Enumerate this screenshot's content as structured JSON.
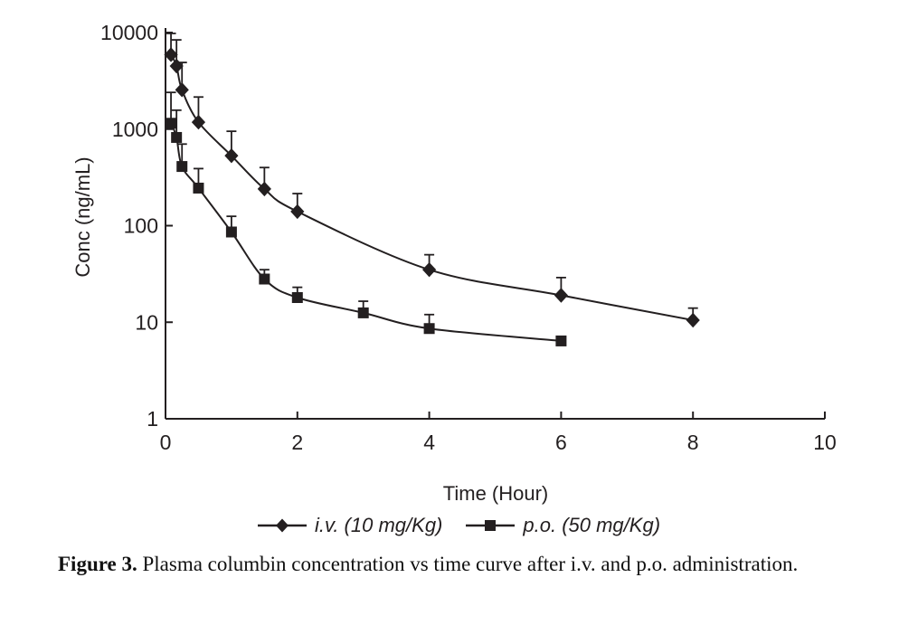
{
  "figure": {
    "background": "#ffffff",
    "ink_color": "#231f20"
  },
  "chart_data": {
    "type": "line",
    "title": "",
    "xlabel": "Time (Hour)",
    "ylabel": "Conc (ng/mL)",
    "grid": false,
    "legend_position": "bottom-center",
    "error_bars": "upward_only",
    "x_axis": {
      "min": 0,
      "max": 10,
      "ticks": [
        {
          "value": 0,
          "label": "0"
        },
        {
          "value": 2,
          "label": "2"
        },
        {
          "value": 4,
          "label": "4"
        },
        {
          "value": 6,
          "label": "6"
        },
        {
          "value": 8,
          "label": "8"
        },
        {
          "value": 10,
          "label": "10"
        }
      ]
    },
    "y_axis": {
      "scale": "log",
      "min": 1,
      "max": 10000,
      "ticks": [
        {
          "value": 1,
          "label": "1"
        },
        {
          "value": 10,
          "label": "10"
        },
        {
          "value": 100,
          "label": "100"
        },
        {
          "value": 1000,
          "label": "1000"
        },
        {
          "value": 10000,
          "label": "10000"
        }
      ]
    },
    "series": [
      {
        "name": "i.v. (10 mg/Kg)",
        "marker": "diamond",
        "color": "#231f20",
        "x": [
          0.083,
          0.167,
          0.25,
          0.5,
          1,
          1.5,
          2,
          4,
          6,
          8
        ],
        "y": [
          5900,
          4500,
          2550,
          1180,
          530,
          240,
          140,
          35,
          19,
          10.5
        ],
        "y_err_top": [
          9800,
          8400,
          4900,
          2150,
          950,
          400,
          215,
          50,
          29,
          14
        ]
      },
      {
        "name": "p.o. (50 mg/Kg)",
        "marker": "square",
        "color": "#231f20",
        "x": [
          0.083,
          0.167,
          0.25,
          0.5,
          1,
          1.5,
          2,
          3,
          4,
          6
        ],
        "y": [
          1150,
          820,
          410,
          245,
          86,
          28,
          18,
          12.5,
          8.6,
          6.4
        ],
        "y_err_top": [
          2400,
          1570,
          700,
          390,
          125,
          35,
          23,
          16.5,
          12,
          null
        ]
      }
    ]
  },
  "caption": {
    "label": "Figure 3.",
    "text": "Plasma columbin concentration vs time curve after i.v. and p.o. administration."
  }
}
